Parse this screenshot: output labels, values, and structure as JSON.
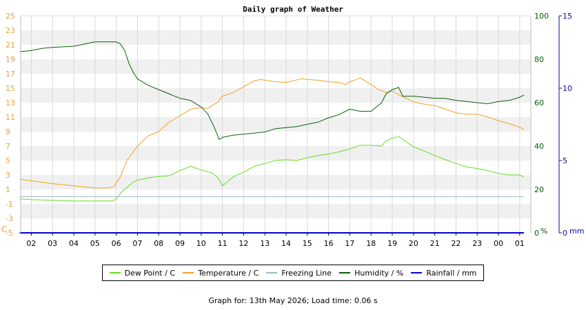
{
  "chart_data": {
    "type": "line",
    "title": "Daily graph of Weather",
    "x_ticks": [
      "02",
      "03",
      "04",
      "05",
      "06",
      "07",
      "08",
      "09",
      "10",
      "11",
      "12",
      "13",
      "14",
      "15",
      "16",
      "17",
      "18",
      "19",
      "20",
      "21",
      "22",
      "23",
      "00",
      "01"
    ],
    "left_axis": {
      "unit": "C",
      "ylim": [
        -5,
        25
      ],
      "ticks": [
        "25",
        "23",
        "21",
        "19",
        "17",
        "15",
        "13",
        "11",
        "9",
        "7",
        "5",
        "3",
        "1",
        "-1",
        "-3",
        "-5"
      ],
      "color": "#e8a33c"
    },
    "right_axis_humidity": {
      "unit": "%",
      "ylim": [
        0,
        100
      ],
      "ticks": [
        "100",
        "80",
        "60",
        "40",
        "20",
        "0"
      ],
      "color": "#0a5c0a"
    },
    "right_axis_rain": {
      "unit": "mm",
      "ylim": [
        0,
        15
      ],
      "ticks": [
        "15",
        "10",
        "5",
        "0"
      ],
      "color": "#0a0aa0"
    },
    "grid": true,
    "legend_position": "bottom",
    "series": [
      {
        "name": "Dew Point / C",
        "color": "#66dd22",
        "axis": "left",
        "x": [
          1.45,
          2,
          3,
          4,
          5,
          5.6,
          5.85,
          6,
          6.3,
          6.8,
          7,
          7.5,
          8,
          8.5,
          9,
          9.5,
          10,
          10.5,
          10.8,
          11,
          11.5,
          12,
          12.5,
          13,
          13.5,
          14,
          14.5,
          15,
          15.5,
          16,
          16.5,
          17,
          17.5,
          18,
          18.5,
          18.7,
          19,
          19.3,
          19.5,
          20,
          20.5,
          21,
          21.5,
          22,
          22.5,
          23,
          23.5,
          24,
          24.5,
          25,
          25.2
        ],
        "y": [
          -0.3,
          -0.4,
          -0.5,
          -0.6,
          -0.6,
          -0.6,
          -0.6,
          -0.3,
          0.8,
          2.0,
          2.3,
          2.6,
          2.8,
          2.9,
          3.6,
          4.2,
          3.7,
          3.3,
          2.6,
          1.5,
          2.7,
          3.4,
          4.2,
          4.6,
          5.0,
          5.1,
          5.0,
          5.4,
          5.7,
          5.9,
          6.2,
          6.6,
          7.1,
          7.1,
          7.0,
          7.7,
          8.1,
          8.3,
          7.9,
          6.9,
          6.3,
          5.7,
          5.1,
          4.6,
          4.1,
          3.9,
          3.6,
          3.2,
          3.0,
          3.0,
          2.7
        ]
      },
      {
        "name": "Temperature / C",
        "color": "#f0a020",
        "axis": "left",
        "x": [
          1.45,
          2,
          3,
          4,
          5,
          5.6,
          5.9,
          6.2,
          6.5,
          7,
          7.5,
          8,
          8.5,
          9,
          9.5,
          10,
          10.3,
          10.8,
          11,
          11.5,
          12,
          12.5,
          12.8,
          13,
          13.5,
          14,
          14.3,
          14.7,
          15,
          15.5,
          16,
          16.5,
          16.8,
          17,
          17.5,
          18,
          18.3,
          18.7,
          19,
          19.5,
          20,
          20.5,
          21,
          21.5,
          22,
          22.5,
          23,
          23.5,
          24,
          24.5,
          25,
          25.2
        ],
        "y": [
          2.4,
          2.2,
          1.8,
          1.5,
          1.2,
          1.2,
          1.4,
          2.8,
          5.0,
          7.0,
          8.4,
          9.0,
          10.3,
          11.2,
          12.1,
          12.3,
          12.2,
          13.1,
          13.9,
          14.4,
          15.2,
          16.0,
          16.2,
          16.1,
          15.9,
          15.8,
          16.0,
          16.3,
          16.2,
          16.1,
          15.9,
          15.8,
          15.5,
          15.9,
          16.4,
          15.5,
          14.9,
          14.4,
          14.6,
          13.8,
          13.1,
          12.8,
          12.6,
          12.1,
          11.6,
          11.4,
          11.4,
          11.0,
          10.5,
          10.1,
          9.6,
          9.3
        ]
      },
      {
        "name": "Freezing Line",
        "color": "#a0b8c8",
        "axis": "left",
        "x": [
          1.45,
          25.2
        ],
        "y": [
          0,
          0
        ]
      },
      {
        "name": "Humidity / %",
        "color": "#0a5c0a",
        "axis": "right_humidity",
        "x": [
          1.45,
          2,
          2.5,
          3,
          4,
          4.5,
          5,
          5.5,
          5.9,
          6,
          6.2,
          6.4,
          6.6,
          6.8,
          7,
          7.5,
          8,
          8.5,
          9,
          9.5,
          10,
          10.3,
          10.6,
          10.85,
          11,
          11.5,
          12,
          12.5,
          13,
          13.5,
          14,
          14.5,
          15,
          15.5,
          16,
          16.5,
          16.8,
          17,
          17.5,
          18,
          18.5,
          18.7,
          19,
          19.3,
          19.5,
          20,
          20.5,
          21,
          21.5,
          22,
          22.5,
          23,
          23.5,
          24,
          24.5,
          25,
          25.2
        ],
        "y": [
          83.5,
          84.0,
          85.0,
          85.5,
          86.0,
          87.0,
          88.0,
          88.0,
          88.0,
          88.0,
          87.0,
          84.0,
          78.0,
          74.0,
          71.0,
          68.0,
          66.0,
          64.0,
          62.0,
          61.0,
          58.0,
          55.0,
          49.0,
          43.0,
          44.0,
          45.0,
          45.5,
          46.0,
          46.5,
          48.0,
          48.5,
          49.0,
          50.0,
          51.0,
          53.0,
          54.5,
          56.0,
          57.0,
          56.0,
          56.0,
          60.0,
          64.0,
          66.0,
          67.0,
          63.0,
          63.0,
          62.5,
          62.0,
          62.0,
          61.0,
          60.5,
          60.0,
          59.5,
          60.5,
          61.0,
          62.5,
          63.5
        ]
      },
      {
        "name": "Rainfall / mm",
        "color": "#0000cc",
        "axis": "right_rain",
        "x": [
          1.45,
          25.2
        ],
        "y": [
          0,
          0
        ]
      }
    ]
  },
  "legend": [
    {
      "label": "Dew Point / C",
      "color": "#66dd22"
    },
    {
      "label": "Temperature / C",
      "color": "#f0a020"
    },
    {
      "label": "Freezing Line",
      "color": "#a0b8c8"
    },
    {
      "label": "Humidity / %",
      "color": "#0a5c0a"
    },
    {
      "label": "Rainfall / mm",
      "color": "#0000cc"
    }
  ],
  "footer": "Graph for: 13th May 2026; Load time: 0.06 s"
}
